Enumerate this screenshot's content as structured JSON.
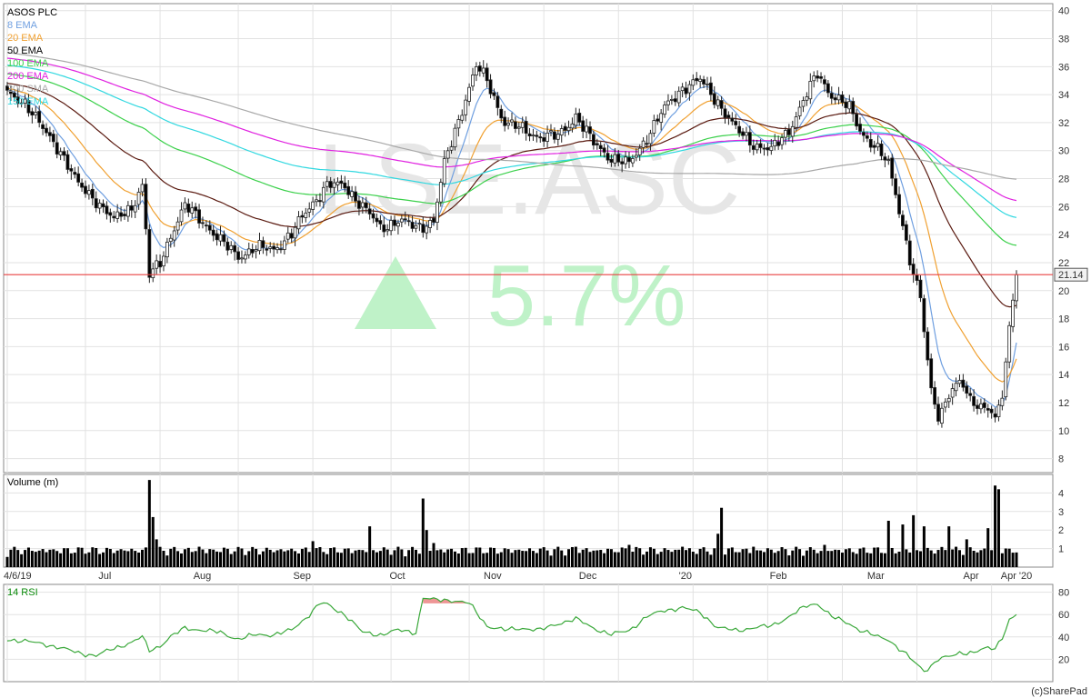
{
  "watermark": {
    "ticker": "LSE.ASC",
    "change": "5.7%"
  },
  "copyright": "(c)SharePad",
  "colors": {
    "ema8": "#6f9fe0",
    "ema20": "#f0a030",
    "ema50": "#5a1a10",
    "ema100": "#3ad04a",
    "ema200": "#e020e0",
    "sma200": "#a8a8a8",
    "ema150": "#30d8e0",
    "price_line": "#e84040",
    "up": "#ffffff",
    "down": "#000000",
    "rsi": "#3aa83a",
    "overbought": "#e04040"
  },
  "chart_data": [
    {
      "type": "candlestick",
      "title": "ASOS PLC",
      "legend": [
        "8 EMA",
        "20 EMA",
        "50 EMA",
        "100 EMA",
        "200 EMA",
        "200 SMA",
        "150 EMA"
      ],
      "yticks": [
        8,
        10,
        12,
        14,
        16,
        18,
        20,
        22,
        24,
        26,
        28,
        30,
        32,
        34,
        36,
        38,
        40
      ],
      "ylim": [
        7,
        40.5
      ],
      "xtick_labels": [
        "4/6/19",
        "Jul",
        "Aug",
        "Sep",
        "Oct",
        "Nov",
        "Dec",
        "'20",
        "Feb",
        "Mar",
        "Apr",
        "Apr '20"
      ],
      "last_price": "21.14",
      "price_line_value": 21.14,
      "close_keypoints": [
        [
          0,
          34
        ],
        [
          5,
          33.5
        ],
        [
          10,
          31.5
        ],
        [
          15,
          30
        ],
        [
          20,
          27.5
        ],
        [
          25,
          26.5
        ],
        [
          30,
          25
        ],
        [
          35,
          26
        ],
        [
          38,
          27.5
        ],
        [
          40,
          21
        ],
        [
          43,
          22
        ],
        [
          46,
          24
        ],
        [
          50,
          26
        ],
        [
          55,
          25
        ],
        [
          60,
          23.5
        ],
        [
          65,
          22.5
        ],
        [
          70,
          23
        ],
        [
          75,
          23
        ],
        [
          80,
          24
        ],
        [
          85,
          26
        ],
        [
          90,
          27.5
        ],
        [
          95,
          27.5
        ],
        [
          100,
          26
        ],
        [
          105,
          24.5
        ],
        [
          110,
          25
        ],
        [
          115,
          24.5
        ],
        [
          120,
          25
        ],
        [
          123,
          29
        ],
        [
          128,
          33
        ],
        [
          132,
          36
        ],
        [
          135,
          35
        ],
        [
          140,
          32
        ],
        [
          145,
          31.5
        ],
        [
          150,
          31
        ],
        [
          155,
          31
        ],
        [
          160,
          32.5
        ],
        [
          165,
          30.5
        ],
        [
          170,
          29.5
        ],
        [
          175,
          29
        ],
        [
          180,
          31
        ],
        [
          185,
          33
        ],
        [
          190,
          34.5
        ],
        [
          195,
          35
        ],
        [
          200,
          33.5
        ],
        [
          205,
          31.5
        ],
        [
          210,
          30.5
        ],
        [
          215,
          30
        ],
        [
          220,
          31.5
        ],
        [
          225,
          34
        ],
        [
          228,
          35.5
        ],
        [
          232,
          34
        ],
        [
          237,
          33
        ],
        [
          240,
          31.5
        ],
        [
          245,
          30
        ],
        [
          248,
          29
        ],
        [
          250,
          27
        ],
        [
          253,
          23.5
        ],
        [
          255,
          21
        ],
        [
          257,
          19.5
        ],
        [
          258,
          17
        ],
        [
          260,
          13
        ],
        [
          262,
          11
        ],
        [
          265,
          12.5
        ],
        [
          268,
          13.5
        ],
        [
          272,
          12
        ],
        [
          276,
          11.5
        ],
        [
          278,
          10.8
        ],
        [
          280,
          12.5
        ],
        [
          282,
          17.5
        ],
        [
          284,
          21.14
        ]
      ],
      "volume": {
        "label": "Volume (m)",
        "yticks": [
          1,
          2,
          3,
          4
        ],
        "ylim": [
          0,
          5
        ],
        "spikes": [
          [
            40,
            4.7
          ],
          [
            41,
            2.7
          ],
          [
            42,
            1.5
          ],
          [
            54,
            1.1
          ],
          [
            86,
            1.4
          ],
          [
            102,
            2.2
          ],
          [
            117,
            3.7
          ],
          [
            118,
            2.0
          ],
          [
            120,
            1.3
          ],
          [
            150,
            1.0
          ],
          [
            160,
            1.1
          ],
          [
            175,
            1.2
          ],
          [
            190,
            1.1
          ],
          [
            200,
            1.8
          ],
          [
            201,
            3.2
          ],
          [
            210,
            1.1
          ],
          [
            230,
            1.2
          ],
          [
            240,
            1.0
          ],
          [
            248,
            2.5
          ],
          [
            252,
            2.3
          ],
          [
            255,
            2.8
          ],
          [
            258,
            2.2
          ],
          [
            265,
            2.2
          ],
          [
            270,
            1.5
          ],
          [
            276,
            2.1
          ],
          [
            278,
            4.4
          ],
          [
            279,
            4.2
          ]
        ]
      }
    },
    {
      "type": "line",
      "label": "14 RSI",
      "yticks": [
        20,
        40,
        60,
        80
      ],
      "ylim": [
        0,
        87
      ],
      "overbought_level": 70,
      "keypoints": [
        [
          0,
          38
        ],
        [
          5,
          36
        ],
        [
          10,
          34
        ],
        [
          15,
          30
        ],
        [
          20,
          26
        ],
        [
          25,
          23
        ],
        [
          30,
          30
        ],
        [
          35,
          35
        ],
        [
          38,
          40
        ],
        [
          40,
          28
        ],
        [
          43,
          32
        ],
        [
          46,
          40
        ],
        [
          50,
          48
        ],
        [
          55,
          46
        ],
        [
          60,
          44
        ],
        [
          65,
          38
        ],
        [
          70,
          42
        ],
        [
          75,
          42
        ],
        [
          80,
          46
        ],
        [
          85,
          60
        ],
        [
          88,
          70
        ],
        [
          90,
          69
        ],
        [
          95,
          60
        ],
        [
          100,
          44
        ],
        [
          105,
          42
        ],
        [
          110,
          46
        ],
        [
          115,
          44
        ],
        [
          117,
          75
        ],
        [
          120,
          73
        ],
        [
          125,
          73
        ],
        [
          130,
          70
        ],
        [
          135,
          50
        ],
        [
          140,
          46
        ],
        [
          145,
          48
        ],
        [
          150,
          46
        ],
        [
          155,
          52
        ],
        [
          160,
          56
        ],
        [
          165,
          48
        ],
        [
          170,
          42
        ],
        [
          175,
          46
        ],
        [
          180,
          58
        ],
        [
          185,
          64
        ],
        [
          190,
          66
        ],
        [
          195,
          62
        ],
        [
          200,
          48
        ],
        [
          205,
          46
        ],
        [
          210,
          48
        ],
        [
          215,
          50
        ],
        [
          220,
          58
        ],
        [
          225,
          68
        ],
        [
          228,
          70
        ],
        [
          232,
          58
        ],
        [
          237,
          52
        ],
        [
          240,
          46
        ],
        [
          245,
          40
        ],
        [
          248,
          38
        ],
        [
          250,
          32
        ],
        [
          253,
          24
        ],
        [
          255,
          18
        ],
        [
          258,
          10
        ],
        [
          260,
          14
        ],
        [
          262,
          20
        ],
        [
          265,
          22
        ],
        [
          268,
          26
        ],
        [
          272,
          26
        ],
        [
          276,
          30
        ],
        [
          278,
          30
        ],
        [
          280,
          40
        ],
        [
          282,
          55
        ],
        [
          284,
          60
        ]
      ]
    }
  ]
}
